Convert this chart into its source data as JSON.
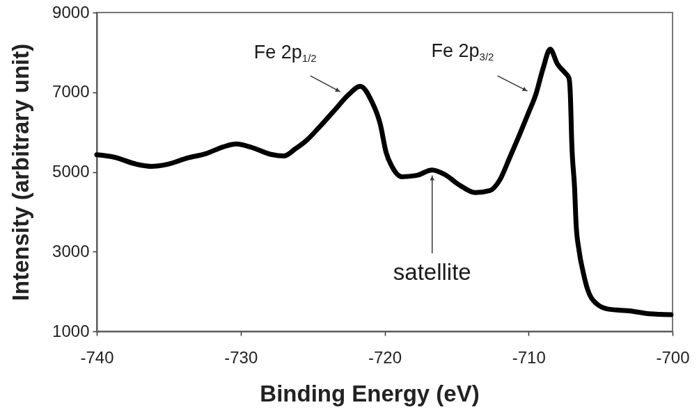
{
  "chart_data": {
    "type": "line",
    "xlabel": "Binding Energy (eV)",
    "ylabel": "Intensity (arbitrary unit)",
    "x": [
      -740.0,
      -738.8,
      -737.2,
      -736.2,
      -735.1,
      -733.7,
      -732.4,
      -731.2,
      -730.3,
      -729.2,
      -727.9,
      -727.0,
      -726.2,
      -725.4,
      -724.5,
      -723.5,
      -722.5,
      -721.7,
      -720.9,
      -720.3,
      -719.9,
      -719.5,
      -718.8,
      -717.8,
      -716.7,
      -715.8,
      -714.8,
      -713.7,
      -712.7,
      -712.0,
      -711.3,
      -710.6,
      -710.0,
      -709.5,
      -709.0,
      -708.5,
      -708.0,
      -707.5,
      -707.2,
      -707.1,
      -707.0,
      -706.8,
      -706.7,
      -706.5,
      -706.2,
      -705.9,
      -705.3,
      -704.5,
      -702.9,
      -701.6,
      -700.1
    ],
    "series": [
      {
        "color": "#000000",
        "values": [
          5430,
          5370,
          5190,
          5140,
          5190,
          5350,
          5460,
          5630,
          5700,
          5610,
          5440,
          5400,
          5580,
          5800,
          6140,
          6540,
          6940,
          7150,
          6770,
          6190,
          5490,
          5140,
          4880,
          4910,
          5050,
          4930,
          4670,
          4480,
          4530,
          4800,
          5370,
          5960,
          6490,
          6940,
          7590,
          8080,
          7710,
          7500,
          7360,
          6940,
          5720,
          4560,
          3690,
          3040,
          2470,
          2050,
          1700,
          1560,
          1510,
          1440,
          1420
        ]
      }
    ],
    "xlim": [
      -740,
      -700
    ],
    "xticks": [
      -740,
      -730,
      -720,
      -710,
      -700
    ],
    "ylim": [
      1000,
      9000
    ],
    "yticks": [
      1000,
      3000,
      5000,
      7000,
      9000
    ],
    "line_style": "solid",
    "annotations": [
      {
        "text": "Fe 2p$_{1/2}$",
        "x": -722.5,
        "y": 6940
      },
      {
        "text": "Fe 2p$_{3/2}$",
        "x": -709.5,
        "y": 6940
      },
      {
        "text": "satellite",
        "x": -716.7,
        "y": 5050
      }
    ]
  }
}
